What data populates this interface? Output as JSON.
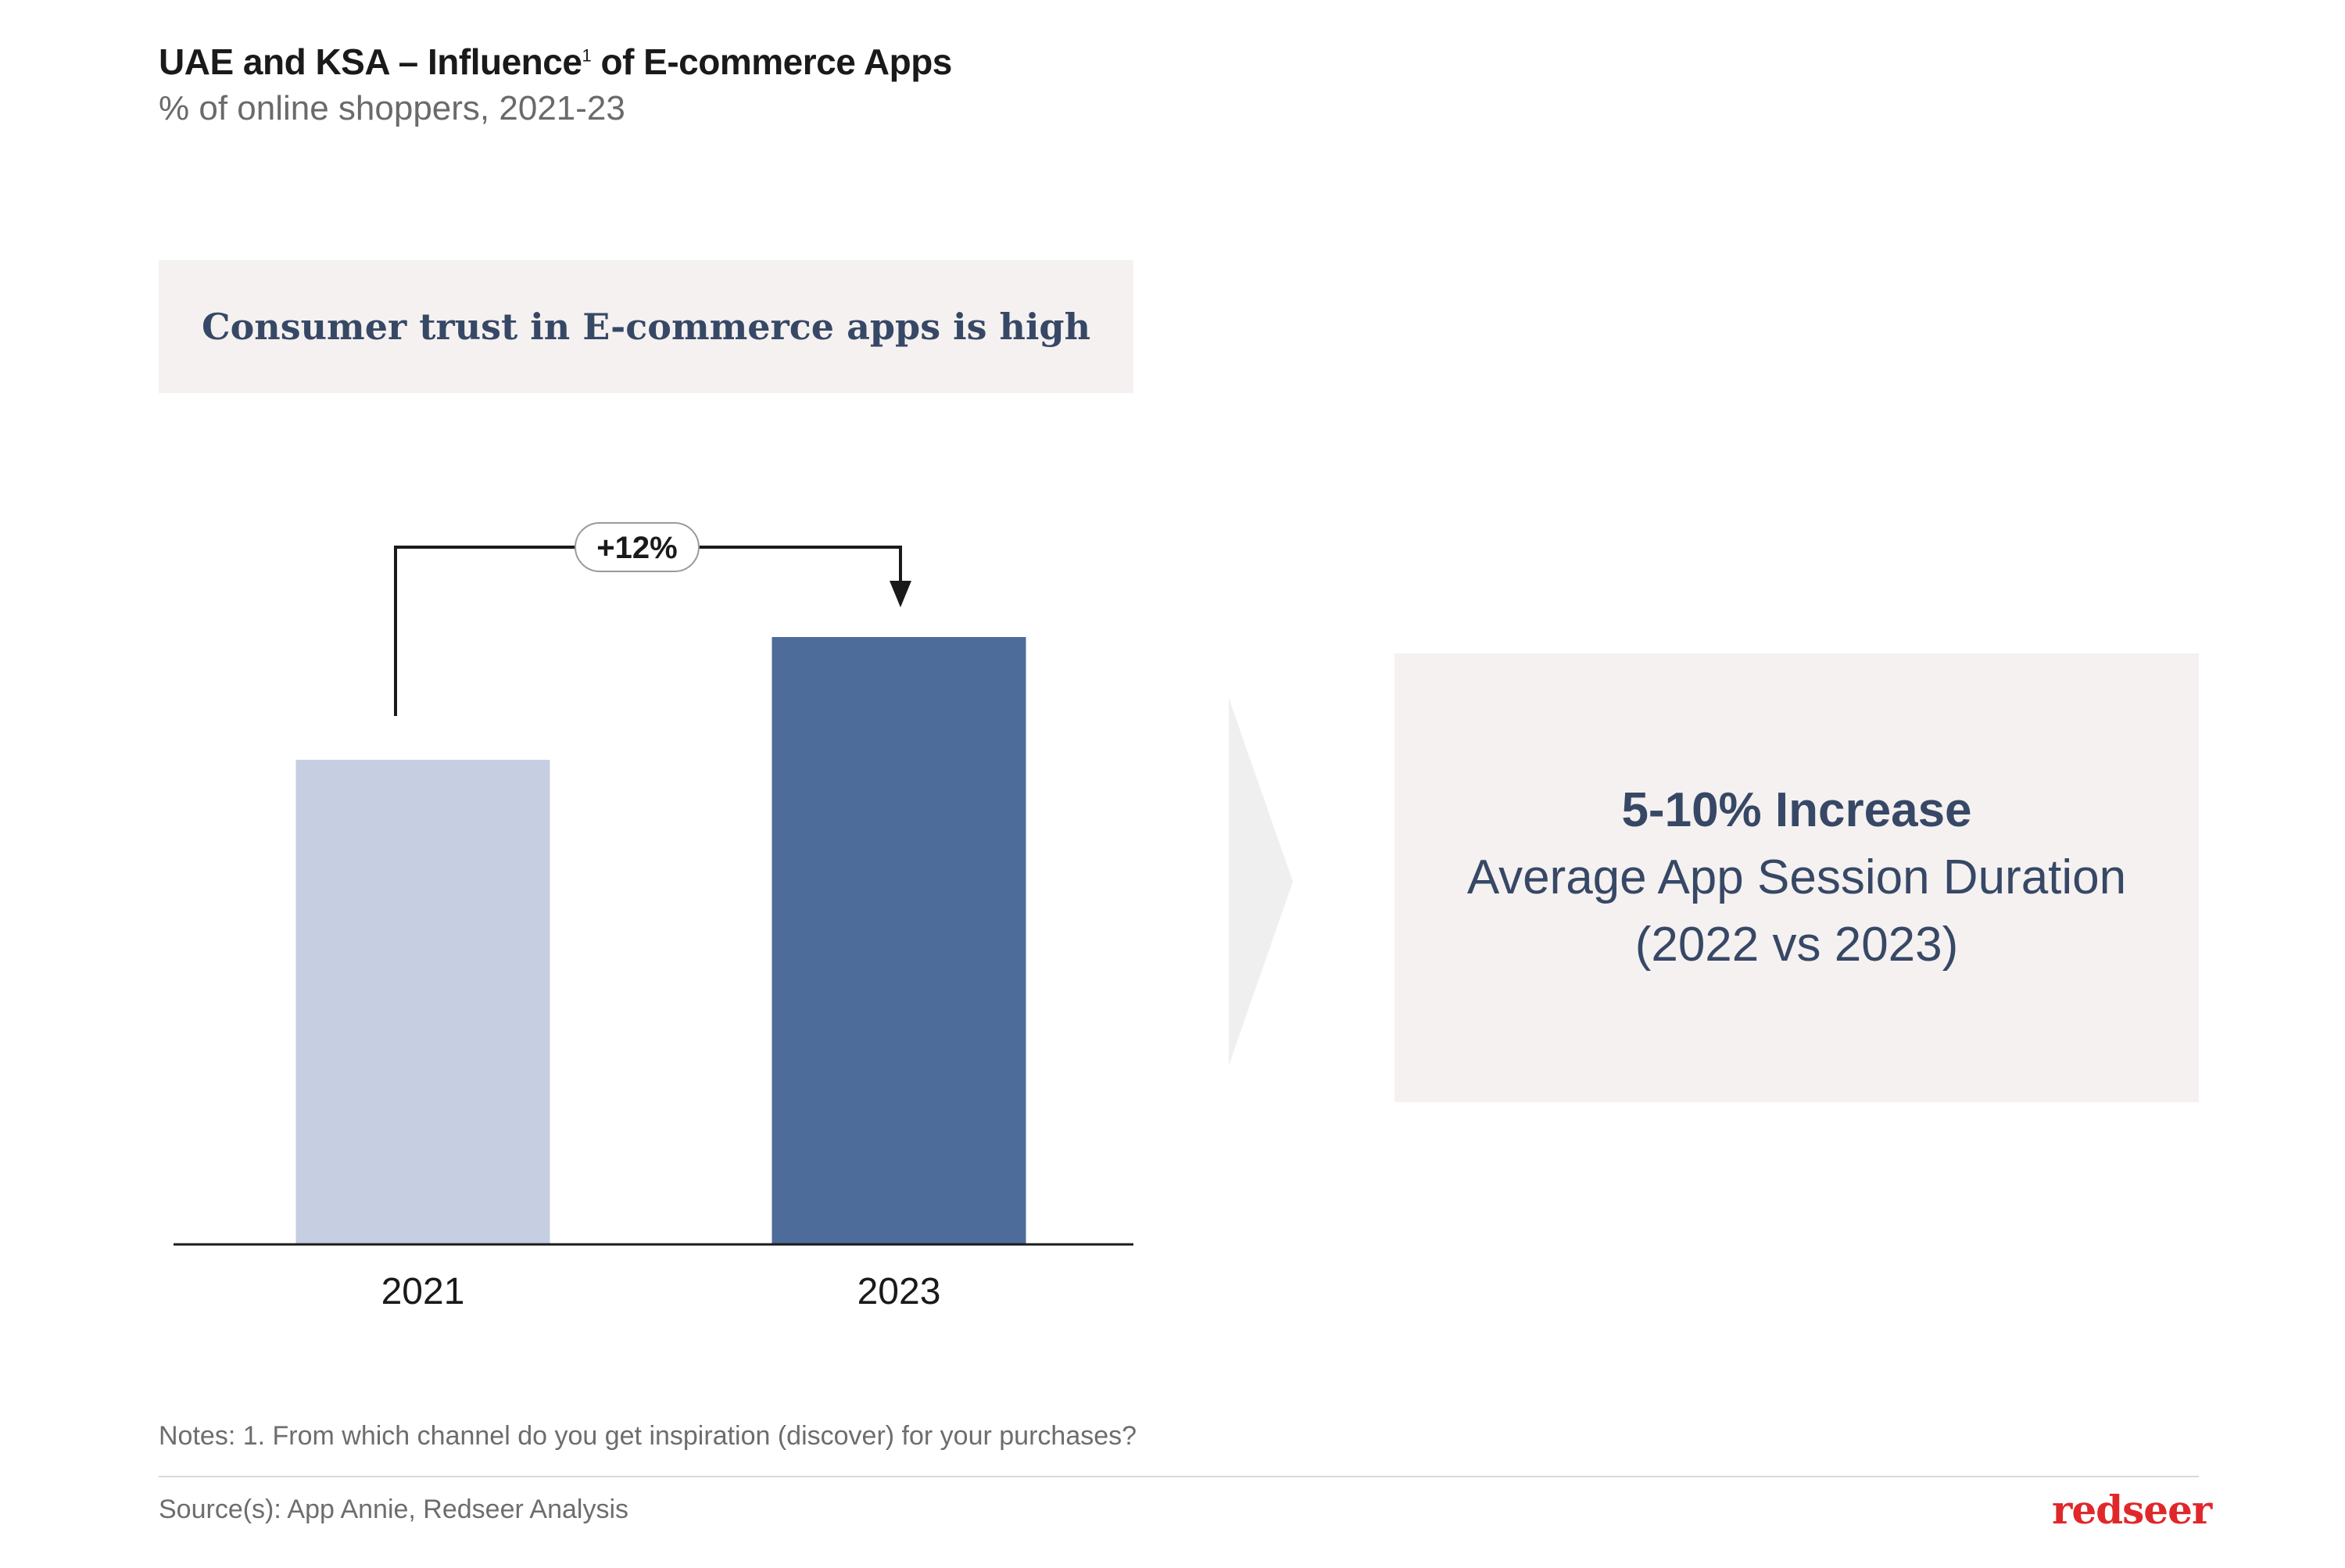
{
  "header": {
    "title": "UAE and KSA – Influence",
    "title_sup": "1",
    "title_rest": " of E-commerce Apps",
    "subtitle": "% of online shoppers, 2021-23"
  },
  "banner": {
    "text": "Consumer trust in E-commerce apps is high"
  },
  "chart_data": {
    "type": "bar",
    "categories": [
      "2021",
      "2023"
    ],
    "values": [
      62,
      77.7
    ],
    "ylim": [
      0,
      100
    ],
    "grid": false,
    "bar_colors": [
      "#c5cfe1",
      "#4d6c99"
    ],
    "annotation": {
      "text": "+12%",
      "from": "2021",
      "to": "2023"
    }
  },
  "callout": {
    "headline": "5-10% Increase",
    "line1": "Average App Session Duration",
    "line2": "(2022 vs 2023)"
  },
  "footer": {
    "notes": "Notes: 1. From which channel do you get inspiration (discover) for your purchases?",
    "source": "Source(s): App Annie, Redseer Analysis",
    "logo": "redseer"
  },
  "colors": {
    "accent": "#e0282b",
    "text_blue": "#374866",
    "panel_bg": "#f4f1f0"
  }
}
